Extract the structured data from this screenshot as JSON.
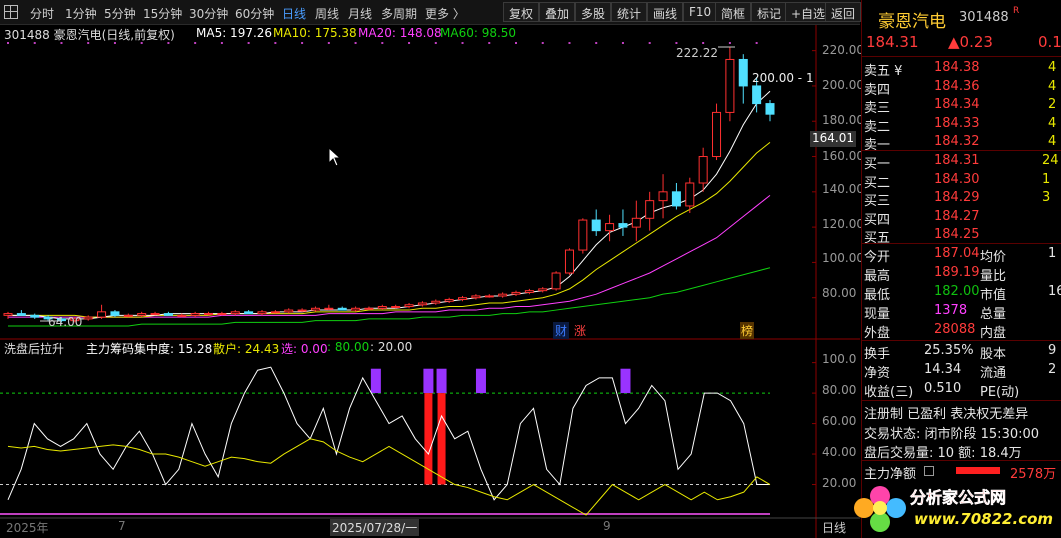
{
  "toolbar": {
    "periods": [
      "分时",
      "1分钟",
      "5分钟",
      "15分钟",
      "30分钟",
      "60分钟",
      "日线",
      "周线",
      "月线",
      "多周期",
      "更多 〉"
    ],
    "active_period": "日线",
    "buttons": [
      "复权",
      "叠加",
      "多股",
      "统计",
      "画线",
      "F10",
      "简框",
      "标记",
      "+自选",
      "返回"
    ]
  },
  "main_chart": {
    "title": "301488 豪恩汽电(日线,前复权)",
    "ma": [
      {
        "label": "MA5: 197.26",
        "color": "#ffffff"
      },
      {
        "label": "MA10: 175.38",
        "color": "#e8e800"
      },
      {
        "label": "MA20: 148.08",
        "color": "#ff40ff"
      },
      {
        "label": "MA60: 98.50",
        "color": "#10d010"
      }
    ],
    "y_ticks": [
      "220.00",
      "200.00",
      "180.00",
      "160.00",
      "140.00",
      "120.00",
      "100.00",
      "80.00"
    ],
    "current_price_tag": "164.01",
    "high_label": "222.22",
    "low_label": "64.00",
    "last_close_label": "200.00 - 1",
    "markers": [
      {
        "text": "财",
        "color": "#3b7bff"
      },
      {
        "text": "涨",
        "color": "#ff4040"
      },
      {
        "text": "榜",
        "color": "#ffcc33"
      }
    ]
  },
  "indicator": {
    "name": "洗盘后拉升",
    "line1_label": "主力筹码集中度: 15.28",
    "line2_label": "散户: 24.43",
    "line3_label": "选: 0.00",
    "line4_label": ": 80.00",
    "line5_label": ": 20.00",
    "y_ticks": [
      "100.0",
      "80.00",
      "60.00",
      "40.00",
      "20.00"
    ]
  },
  "x_axis": {
    "labels": [
      "2025年",
      "7",
      "2025/07/28/一",
      "9"
    ],
    "period_label": "日线"
  },
  "chart_data": [
    {
      "type": "candlestick",
      "title": "301488 豪恩汽电(日线,前复权)",
      "ylim": [
        60,
        230
      ],
      "candles": [
        [
          70,
          72,
          68,
          71
        ],
        [
          71,
          73,
          70,
          70
        ],
        [
          70,
          71,
          68,
          69
        ],
        [
          69,
          70,
          67,
          68
        ],
        [
          68,
          69,
          66,
          67
        ],
        [
          67,
          69,
          66,
          68
        ],
        [
          68,
          70,
          67,
          69
        ],
        [
          69,
          76,
          68,
          72
        ],
        [
          72,
          73,
          69,
          70
        ],
        [
          70,
          71,
          69,
          70
        ],
        [
          70,
          72,
          69,
          71
        ],
        [
          71,
          72,
          70,
          71
        ],
        [
          71,
          72,
          70,
          70
        ],
        [
          70,
          71,
          69,
          70
        ],
        [
          70,
          72,
          69,
          71
        ],
        [
          71,
          72,
          70,
          71
        ],
        [
          71,
          72,
          70,
          71
        ],
        [
          71,
          73,
          70,
          72
        ],
        [
          72,
          73,
          71,
          71
        ],
        [
          71,
          73,
          70,
          72
        ],
        [
          72,
          73,
          71,
          72
        ],
        [
          72,
          74,
          71,
          73
        ],
        [
          73,
          74,
          72,
          73
        ],
        [
          73,
          75,
          72,
          74
        ],
        [
          74,
          76,
          73,
          74
        ],
        [
          74,
          75,
          73,
          73
        ],
        [
          73,
          75,
          72,
          74
        ],
        [
          74,
          75,
          73,
          74
        ],
        [
          74,
          76,
          73,
          75
        ],
        [
          75,
          76,
          74,
          75
        ],
        [
          75,
          77,
          74,
          76
        ],
        [
          76,
          78,
          75,
          77
        ],
        [
          77,
          79,
          76,
          78
        ],
        [
          78,
          80,
          77,
          79
        ],
        [
          79,
          81,
          78,
          80
        ],
        [
          80,
          82,
          79,
          81
        ],
        [
          81,
          82,
          80,
          81
        ],
        [
          81,
          83,
          80,
          82
        ],
        [
          82,
          84,
          81,
          83
        ],
        [
          83,
          85,
          82,
          84
        ],
        [
          84,
          86,
          83,
          85
        ],
        [
          85,
          95,
          84,
          94
        ],
        [
          94,
          108,
          93,
          107
        ],
        [
          107,
          125,
          105,
          124
        ],
        [
          124,
          130,
          115,
          118
        ],
        [
          118,
          127,
          112,
          122
        ],
        [
          122,
          130,
          115,
          120
        ],
        [
          120,
          135,
          112,
          125
        ],
        [
          125,
          140,
          118,
          135
        ],
        [
          135,
          150,
          125,
          140
        ],
        [
          140,
          145,
          130,
          132
        ],
        [
          132,
          148,
          128,
          145
        ],
        [
          145,
          165,
          140,
          160
        ],
        [
          160,
          190,
          158,
          185
        ],
        [
          185,
          222,
          180,
          215
        ],
        [
          215,
          218,
          190,
          200
        ],
        [
          200,
          205,
          185,
          190
        ],
        [
          190,
          192,
          180,
          184
        ]
      ],
      "ma5": [
        70,
        70,
        70,
        69,
        68,
        68,
        68,
        69,
        70,
        70,
        70,
        70,
        71,
        71,
        71,
        71,
        71,
        71,
        71,
        71,
        72,
        72,
        72,
        73,
        73,
        73,
        73,
        74,
        74,
        74,
        75,
        76,
        77,
        78,
        79,
        80,
        81,
        81,
        82,
        83,
        84,
        86,
        92,
        101,
        110,
        117,
        120,
        123,
        128,
        131,
        133,
        136,
        141,
        150,
        163,
        178,
        190,
        197
      ],
      "ma10": [
        70,
        70,
        70,
        70,
        70,
        70,
        69,
        69,
        69,
        69,
        69,
        70,
        70,
        70,
        70,
        70,
        71,
        71,
        71,
        71,
        71,
        71,
        71,
        72,
        72,
        72,
        72,
        73,
        73,
        73,
        73,
        74,
        74,
        75,
        75,
        76,
        77,
        77,
        78,
        79,
        80,
        82,
        85,
        90,
        96,
        101,
        106,
        111,
        116,
        121,
        126,
        130,
        134,
        139,
        146,
        154,
        162,
        168
      ],
      "ma20": [
        69,
        69,
        69,
        69,
        69,
        69,
        69,
        69,
        69,
        69,
        69,
        69,
        69,
        69,
        69,
        69,
        70,
        70,
        70,
        70,
        70,
        70,
        70,
        70,
        71,
        71,
        71,
        71,
        71,
        72,
        72,
        72,
        72,
        73,
        73,
        73,
        74,
        74,
        75,
        75,
        76,
        77,
        78,
        80,
        82,
        85,
        88,
        91,
        94,
        98,
        102,
        106,
        110,
        114,
        120,
        126,
        132,
        138
      ],
      "ma60": [
        64,
        64,
        64,
        64,
        64,
        64,
        64,
        64,
        64,
        64,
        65,
        65,
        65,
        65,
        65,
        65,
        65,
        66,
        66,
        66,
        66,
        66,
        66,
        67,
        67,
        67,
        67,
        68,
        68,
        68,
        68,
        69,
        69,
        69,
        70,
        70,
        70,
        71,
        71,
        72,
        72,
        73,
        74,
        75,
        76,
        77,
        78,
        79,
        80,
        82,
        83,
        85,
        87,
        89,
        91,
        93,
        95,
        97
      ]
    },
    {
      "type": "line",
      "title": "洗盘后拉升",
      "ylim": [
        0,
        105
      ],
      "series": [
        {
          "name": "主力筹码集中度",
          "values": [
            10,
            30,
            60,
            50,
            45,
            50,
            60,
            40,
            30,
            45,
            55,
            40,
            20,
            30,
            60,
            40,
            25,
            60,
            80,
            95,
            97,
            80,
            60,
            50,
            70,
            40,
            70,
            90,
            75,
            60,
            65,
            50,
            40,
            65,
            50,
            55,
            30,
            10,
            20,
            60,
            70,
            30,
            20,
            70,
            85,
            90,
            90,
            60,
            70,
            85,
            75,
            30,
            40,
            80,
            80,
            75,
            60,
            20,
            20
          ]
        },
        {
          "name": "散户",
          "values": [
            45,
            44,
            45,
            43,
            42,
            43,
            44,
            45,
            46,
            45,
            43,
            40,
            40,
            38,
            35,
            32,
            35,
            38,
            37,
            35,
            34,
            40,
            45,
            50,
            48,
            42,
            38,
            35,
            40,
            45,
            40,
            35,
            30,
            25,
            20,
            18,
            15,
            12,
            10,
            15,
            20,
            15,
            10,
            5,
            0,
            10,
            20,
            15,
            10,
            15,
            20,
            15,
            10,
            15,
            10,
            12,
            15,
            25,
            20
          ]
        }
      ]
    }
  ],
  "side_panel": {
    "stock_name": "豪恩汽电",
    "code": "301488",
    "tag": "R",
    "price": "184.31",
    "change": "▲0.23",
    "change_pct": "0.1",
    "ask": [
      {
        "label": "卖五 ¥",
        "price": "184.38",
        "vol": "4"
      },
      {
        "label": "卖四",
        "price": "184.36",
        "vol": "4"
      },
      {
        "label": "卖三",
        "price": "184.34",
        "vol": "2"
      },
      {
        "label": "卖二",
        "price": "184.33",
        "vol": "4"
      },
      {
        "label": "卖一",
        "price": "184.32",
        "vol": "4"
      }
    ],
    "bid": [
      {
        "label": "买一",
        "price": "184.31",
        "vol": "24"
      },
      {
        "label": "买二",
        "price": "184.30",
        "vol": "1"
      },
      {
        "label": "买三",
        "price": "184.29",
        "vol": "3"
      },
      {
        "label": "买四",
        "price": "184.27",
        "vol": ""
      },
      {
        "label": "买五",
        "price": "184.25",
        "vol": ""
      }
    ],
    "stats": [
      {
        "l1": "今开",
        "v1": "187.04",
        "c1": "red",
        "l2": "均价",
        "v2": "1"
      },
      {
        "l1": "最高",
        "v1": "189.19",
        "c1": "red",
        "l2": "量比",
        "v2": ""
      },
      {
        "l1": "最低",
        "v1": "182.00",
        "c1": "green",
        "l2": "市值",
        "v2": "16"
      },
      {
        "l1": "现量",
        "v1": "1378",
        "c1": "pink",
        "l2": "总量",
        "v2": ""
      },
      {
        "l1": "外盘",
        "v1": "28088",
        "c1": "red",
        "l2": "内盘",
        "v2": ""
      }
    ],
    "stats2": [
      {
        "l1": "换手",
        "v1": "25.35%",
        "l2": "股本",
        "v2": "9"
      },
      {
        "l1": "净资",
        "v1": "14.34",
        "l2": "流通",
        "v2": "2"
      },
      {
        "l1": "收益(三)",
        "v1": "0.510",
        "l2": "PE(动)",
        "v2": ""
      }
    ],
    "reg_line": "注册制 已盈利 表决权无差异",
    "trade_status": "交易状态: 闭市阶段 15:30:00",
    "after_hours": "盘后交易量: 10  额: 18.4万",
    "net_flow_label": "主力净额",
    "net_flow_value": "2578万",
    "watermark_cn": "分析家公式网",
    "watermark_url": "www.70822.com"
  }
}
